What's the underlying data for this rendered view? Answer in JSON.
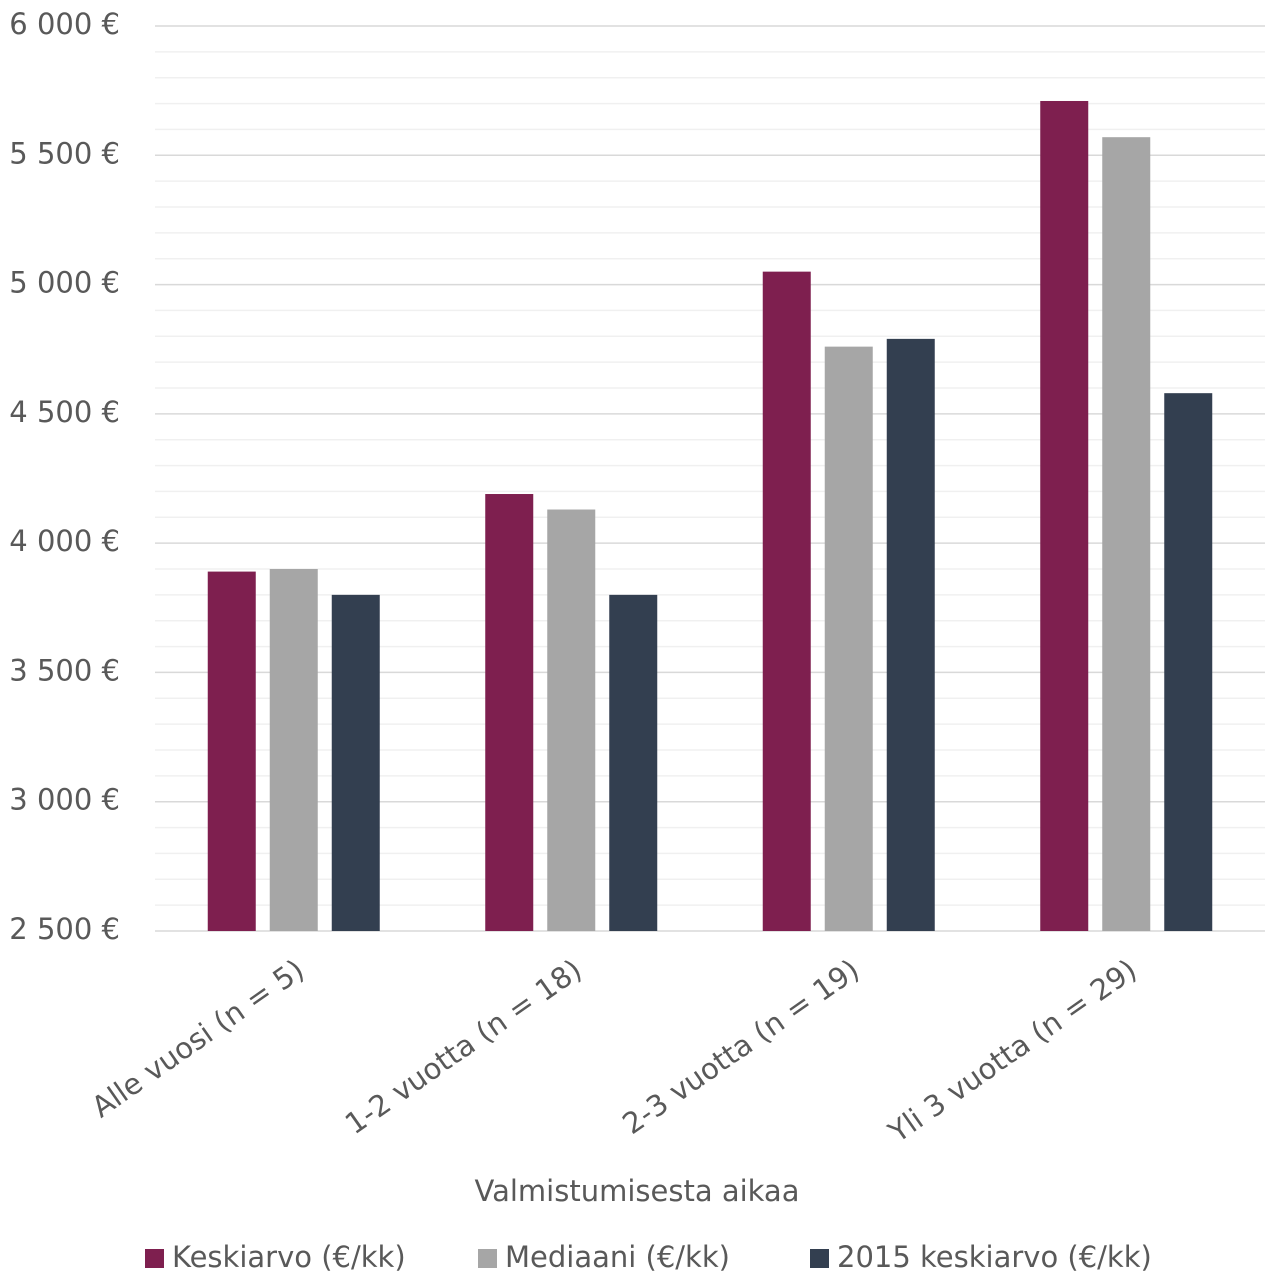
{
  "chart_data": {
    "type": "bar",
    "x_label": "Valmistumisesta aikaa",
    "categories": [
      "Alle vuosi (n = 5)",
      "1-2 vuotta (n = 18)",
      "2-3 vuotta (n = 19)",
      "Yli 3 vuotta (n = 29)"
    ],
    "series": [
      {
        "name": "Keskiarvo (€/kk)",
        "color": "#7e1f4f",
        "values": [
          3890,
          4190,
          5050,
          5710
        ]
      },
      {
        "name": "Mediaani (€/kk)",
        "color": "#a6a6a6",
        "values": [
          3900,
          4130,
          4760,
          5570
        ]
      },
      {
        "name": "2015 keskiarvo (€/kk)",
        "color": "#333f50",
        "values": [
          3800,
          3800,
          4790,
          4580
        ]
      }
    ],
    "ylim": [
      2500,
      6000
    ],
    "yticks": [
      {
        "value": 2500,
        "label": "2 500 €"
      },
      {
        "value": 3000,
        "label": "3 000 €"
      },
      {
        "value": 3500,
        "label": "3 500 €"
      },
      {
        "value": 4000,
        "label": "4 000 €"
      },
      {
        "value": 4500,
        "label": "4 500 €"
      },
      {
        "value": 5000,
        "label": "5 000 €"
      },
      {
        "value": 5500,
        "label": "5 500 €"
      },
      {
        "value": 6000,
        "label": "6 000 €"
      }
    ],
    "minor_yticks": [
      2600,
      2700,
      2800,
      2900,
      3100,
      3200,
      3300,
      3400,
      3600,
      3700,
      3800,
      3900,
      4100,
      4200,
      4300,
      4400,
      4600,
      4700,
      4800,
      4900,
      5100,
      5200,
      5300,
      5400,
      5600,
      5700,
      5800,
      5900
    ],
    "grid": true,
    "legend": "bottom"
  }
}
